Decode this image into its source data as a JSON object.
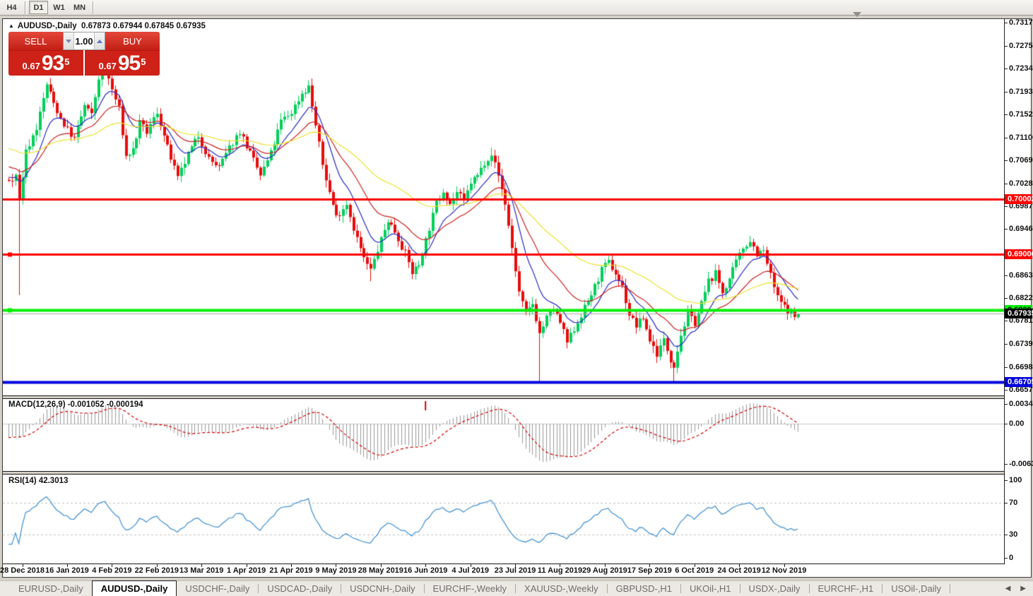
{
  "toolbar": {
    "timeframes": [
      {
        "label": "H4",
        "active": false
      },
      {
        "label": "D1",
        "active": true
      },
      {
        "label": "W1",
        "active": false
      },
      {
        "label": "MN",
        "active": false
      }
    ]
  },
  "chart": {
    "title_symbol": "AUDUSD-,Daily",
    "title_ohlc": "0.67873 0.67944 0.67845 0.67935",
    "trade_panel": {
      "sell_label": "SELL",
      "buy_label": "BUY",
      "volume": "1.00",
      "sell_price": {
        "prefix": "0.67",
        "big": "93",
        "sup": "5"
      },
      "buy_price": {
        "prefix": "0.67",
        "big": "95",
        "sup": "5"
      }
    }
  },
  "chart_data": {
    "type": "candlestick",
    "symbol": "AUDUSD-,Daily",
    "last_bar": {
      "open": 0.67873,
      "high": 0.67944,
      "low": 0.67845,
      "close": 0.67935
    },
    "price_axis_ticks": [
      "0.73170",
      "0.72750",
      "0.72340",
      "0.71930",
      "0.71520",
      "0.71100",
      "0.70690",
      "0.70280",
      "0.69870",
      "0.69460",
      "0.68630",
      "0.68220",
      "0.67810",
      "0.67390",
      "0.66980",
      "0.66570"
    ],
    "price_range": [
      0.66468,
      0.73234
    ],
    "x_axis_dates": [
      "28 Dec 2018",
      "16 Jan 2019",
      "4 Feb 2019",
      "22 Feb 2019",
      "13 Mar 2019",
      "1 Apr 2019",
      "21 Apr 2019",
      "9 May 2019",
      "28 May 2019",
      "16 Jun 2019",
      "4 Jul 2019",
      "23 Jul 2019",
      "11 Aug 2019",
      "29 Aug 2019",
      "17 Sep 2019",
      "6 Oct 2019",
      "24 Oct 2019",
      "12 Nov 2019"
    ],
    "first_date_index": 4,
    "date_step": 13,
    "num_candles": 230,
    "candle_colors": {
      "up": "#00cf5a",
      "down": "#e80c0c"
    },
    "close_path_anchors": [
      [
        -30,
        0.7148
      ],
      [
        -22,
        0.7105
      ],
      [
        -14,
        0.7066
      ],
      [
        -7,
        0.7038
      ],
      [
        -2,
        0.703
      ],
      [
        0,
        0.7035
      ],
      [
        2,
        0.7042
      ],
      [
        3,
        0.6998
      ],
      [
        5,
        0.7085
      ],
      [
        8,
        0.7128
      ],
      [
        11,
        0.7206
      ],
      [
        13,
        0.7172
      ],
      [
        15,
        0.7145
      ],
      [
        17,
        0.7124
      ],
      [
        19,
        0.7108
      ],
      [
        22,
        0.7168
      ],
      [
        24,
        0.715
      ],
      [
        26,
        0.7218
      ],
      [
        28,
        0.7236
      ],
      [
        30,
        0.7196
      ],
      [
        32,
        0.7162
      ],
      [
        34,
        0.7076
      ],
      [
        36,
        0.7088
      ],
      [
        38,
        0.7136
      ],
      [
        40,
        0.712
      ],
      [
        43,
        0.7156
      ],
      [
        46,
        0.7092
      ],
      [
        49,
        0.7036
      ],
      [
        52,
        0.708
      ],
      [
        55,
        0.7114
      ],
      [
        58,
        0.7072
      ],
      [
        61,
        0.7056
      ],
      [
        64,
        0.7092
      ],
      [
        67,
        0.7122
      ],
      [
        70,
        0.7082
      ],
      [
        73,
        0.7042
      ],
      [
        76,
        0.7082
      ],
      [
        79,
        0.714
      ],
      [
        82,
        0.7156
      ],
      [
        85,
        0.719
      ],
      [
        87,
        0.7202
      ],
      [
        89,
        0.7132
      ],
      [
        91,
        0.7062
      ],
      [
        93,
        0.7012
      ],
      [
        95,
        0.6968
      ],
      [
        98,
        0.6992
      ],
      [
        100,
        0.6948
      ],
      [
        103,
        0.6892
      ],
      [
        105,
        0.6872
      ],
      [
        108,
        0.6926
      ],
      [
        110,
        0.6962
      ],
      [
        112,
        0.6942
      ],
      [
        115,
        0.6902
      ],
      [
        117,
        0.6868
      ],
      [
        119,
        0.6882
      ],
      [
        121,
        0.6926
      ],
      [
        124,
        0.6992
      ],
      [
        126,
        0.7016
      ],
      [
        128,
        0.6992
      ],
      [
        130,
        0.7012
      ],
      [
        132,
        0.6996
      ],
      [
        134,
        0.703
      ],
      [
        136,
        0.7042
      ],
      [
        138,
        0.7066
      ],
      [
        140,
        0.7082
      ],
      [
        142,
        0.7042
      ],
      [
        144,
        0.6992
      ],
      [
        146,
        0.6912
      ],
      [
        148,
        0.6832
      ],
      [
        150,
        0.6792
      ],
      [
        152,
        0.6812
      ],
      [
        154,
        0.6758
      ],
      [
        156,
        0.6786
      ],
      [
        158,
        0.6802
      ],
      [
        160,
        0.6778
      ],
      [
        162,
        0.6742
      ],
      [
        164,
        0.6766
      ],
      [
        166,
        0.6792
      ],
      [
        168,
        0.6816
      ],
      [
        170,
        0.6842
      ],
      [
        172,
        0.6872
      ],
      [
        174,
        0.6886
      ],
      [
        176,
        0.6866
      ],
      [
        178,
        0.6842
      ],
      [
        180,
        0.6792
      ],
      [
        182,
        0.6772
      ],
      [
        184,
        0.6786
      ],
      [
        186,
        0.6746
      ],
      [
        188,
        0.6722
      ],
      [
        190,
        0.6746
      ],
      [
        192,
        0.6712
      ],
      [
        193,
        0.6702
      ],
      [
        195,
        0.6756
      ],
      [
        197,
        0.6792
      ],
      [
        199,
        0.6778
      ],
      [
        201,
        0.6812
      ],
      [
        203,
        0.6852
      ],
      [
        205,
        0.6866
      ],
      [
        207,
        0.6832
      ],
      [
        209,
        0.6856
      ],
      [
        211,
        0.6886
      ],
      [
        213,
        0.6912
      ],
      [
        215,
        0.6926
      ],
      [
        217,
        0.6902
      ],
      [
        219,
        0.6906
      ],
      [
        221,
        0.6862
      ],
      [
        223,
        0.6822
      ],
      [
        225,
        0.6806
      ],
      [
        227,
        0.6796
      ],
      [
        228,
        0.6788
      ],
      [
        229,
        0.67935
      ]
    ],
    "wick_events": {
      "3": {
        "low": 0.6827
      },
      "28": {
        "high": 0.7252
      },
      "105": {
        "low": 0.6852
      },
      "140": {
        "high": 0.7092
      },
      "154": {
        "low": 0.6672
      },
      "193": {
        "low": 0.667
      }
    },
    "levels": [
      {
        "price": 0.70002,
        "badge": "0.70002",
        "color": "#ff0000",
        "width": 3,
        "badge_text": "#ffffff",
        "handle": false
      },
      {
        "price": 0.69006,
        "badge": "0.69006",
        "color": "#ff0000",
        "width": 3,
        "badge_text": "#ffffff",
        "handle": true
      },
      {
        "price": 0.68004,
        "badge": "0.68004",
        "color": "#00ee00",
        "width": 4,
        "badge_text": "#111111",
        "handle": true
      },
      {
        "price": 0.66705,
        "badge": "0.66705",
        "color": "#0000dd",
        "width": 4,
        "badge_text": "#ffffff",
        "handle": false
      }
    ],
    "current_price": {
      "value": 0.67935,
      "badge": "0.67935",
      "line_color": "#a8a8a8",
      "badge_bg": "#000000",
      "badge_text": "#ffffff"
    },
    "moving_averages": [
      {
        "name": "fast",
        "period": 10,
        "color": "#2828c8"
      },
      {
        "name": "medium",
        "period": 22,
        "color": "#cc2020"
      },
      {
        "name": "slow",
        "period": 55,
        "color": "#ece32e"
      }
    ],
    "macd": {
      "label": "MACD(12,26,9) -0.001052 -0.000194",
      "params": [
        12,
        26,
        9
      ],
      "main_value": "-0.001052",
      "signal_value": "-0.000194",
      "scale_ticks": [
        "0.00349",
        "0.00",
        "-0.00637"
      ],
      "scale_values": [
        0.00349,
        0,
        -0.00637
      ],
      "range": [
        0.004,
        -0.0075
      ],
      "histogram_color": "#999999",
      "signal_color": "#d40000",
      "marker_index": 121,
      "marker_color": "#cc0000"
    },
    "rsi": {
      "label": "RSI(14) 42.3013",
      "period": 14,
      "value": 42.3013,
      "scale_ticks": [
        "100",
        "70",
        "30",
        "0"
      ],
      "scale_values": [
        100,
        70,
        30,
        0
      ],
      "levels": [
        70,
        30
      ],
      "line_color": "#3e8ed0",
      "level_color": "#c0c0c0"
    }
  },
  "tabs": {
    "items": [
      "EURUSD-,Daily",
      "AUDUSD-,Daily",
      "USDCHF-,Daily",
      "USDCAD-,Daily",
      "USDCNH-,Daily",
      "EURCHF-,Weekly",
      "XAUUSD-,Weekly",
      "GBPUSD-,H1",
      "UKOil-,H1",
      "USDX-,Daily",
      "EURCHF-,H1",
      "USOil-,Daily"
    ],
    "active_index": 1
  }
}
